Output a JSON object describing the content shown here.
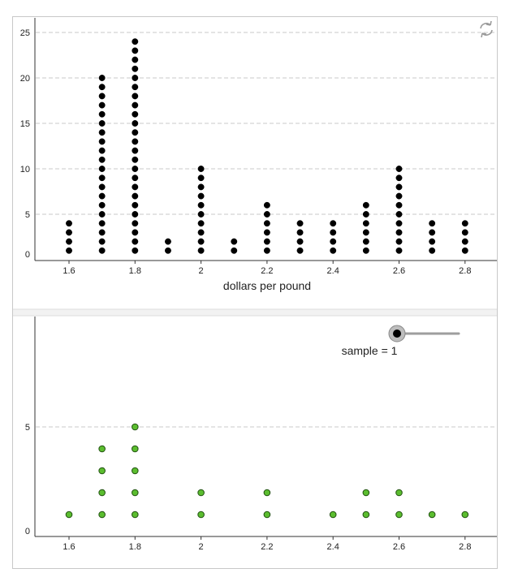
{
  "population_panel": {
    "xlabel": "dollars per pound"
  },
  "sample_panel": {
    "slider_label": "sample = 1",
    "slider_value": 1
  },
  "icons": {
    "reset": "refresh-icon"
  },
  "colors": {
    "population_dot": "#000000",
    "sample_dot_fill": "#5bbd2f",
    "sample_dot_stroke": "#1f4f0f",
    "grid": "#c8c8c8",
    "slider_track": "#9e9e9e"
  },
  "chart_data": [
    {
      "type": "scatter",
      "title": "",
      "xlabel": "dollars per pound",
      "ylabel": "",
      "xlim": [
        1.5,
        2.9
      ],
      "ylim": [
        0,
        25
      ],
      "x_ticks": [
        "1.6",
        "1.8",
        "2",
        "2.2",
        "2.4",
        "2.6",
        "2.8"
      ],
      "y_ticks": [
        "0",
        "5",
        "10",
        "15",
        "20",
        "25"
      ],
      "grid": true,
      "categories": [
        "1.6",
        "1.7",
        "1.8",
        "1.9",
        "2",
        "2.1",
        "2.2",
        "2.3",
        "2.4",
        "2.5",
        "2.6",
        "2.7",
        "2.8"
      ],
      "x": [
        1.6,
        1.7,
        1.8,
        1.9,
        2.0,
        2.1,
        2.2,
        2.3,
        2.4,
        2.5,
        2.6,
        2.7,
        2.8
      ],
      "values": [
        4,
        20,
        24,
        2,
        10,
        2,
        6,
        4,
        4,
        6,
        10,
        4,
        4
      ]
    },
    {
      "type": "scatter",
      "title": "",
      "xlabel": "",
      "ylabel": "",
      "xlim": [
        1.5,
        2.9
      ],
      "ylim": [
        0,
        9
      ],
      "x_ticks": [
        "1.6",
        "1.8",
        "2",
        "2.2",
        "2.4",
        "2.6",
        "2.8"
      ],
      "y_ticks": [
        "0",
        "5"
      ],
      "grid": true,
      "categories": [
        "1.6",
        "1.7",
        "1.8",
        "2",
        "2.2",
        "2.4",
        "2.5",
        "2.6",
        "2.7",
        "2.8"
      ],
      "x": [
        1.6,
        1.7,
        1.8,
        2.0,
        2.2,
        2.4,
        2.5,
        2.6,
        2.7,
        2.8
      ],
      "values": [
        1,
        4,
        5,
        2,
        2,
        1,
        2,
        2,
        1,
        1
      ]
    }
  ]
}
